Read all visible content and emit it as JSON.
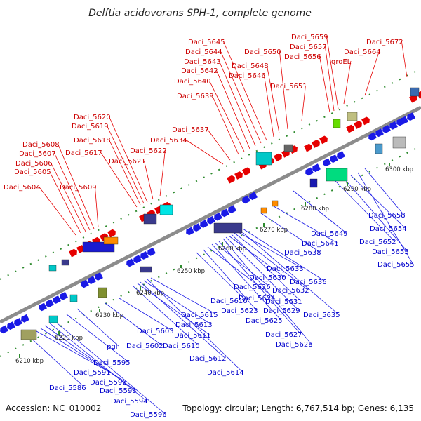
{
  "title": "Delftia acidovorans SPH-1, complete genome",
  "accession": "Accession: NC_010002",
  "topology": "Topology: circular; Length: 6,767,514 bp; Genes: 6,135",
  "colors": {
    "forward_gene": "#e60000",
    "reverse_gene": "#1a1ae6",
    "forward_label": "#cc0000",
    "reverse_label": "#0000cc",
    "axis": "#9a9a9a",
    "tick": "#2e8b2e"
  },
  "kbp_ticks": [
    "6210 kbp",
    "6220 kbp",
    "6230 kbp",
    "6240 kbp",
    "6250 kbp",
    "6260 kbp",
    "6270 kbp",
    "6280 kbp",
    "6290 kbp",
    "6300 kbp"
  ],
  "forward_genes": [
    "Daci_5604",
    "Daci_5605",
    "Daci_5606",
    "Daci_5607",
    "Daci_5608",
    "Daci_5609",
    "Daci_5617",
    "Daci_5618",
    "Daci_5619",
    "Daci_5620",
    "Daci_5621",
    "Daci_5622",
    "Daci_5634",
    "Daci_5637",
    "Daci_5639",
    "Daci_5640",
    "Daci_5642",
    "Daci_5643",
    "Daci_5644",
    "Daci_5645",
    "Daci_5646",
    "Daci_5648",
    "Daci_5650",
    "Daci_5651",
    "Daci_5656",
    "Daci_5657",
    "Daci_5659",
    "groEL",
    "Daci_5664",
    "Daci_5672"
  ],
  "reverse_genes": [
    "Daci_5586",
    "Daci_5591",
    "Daci_5592",
    "Daci_5593",
    "Daci_5594",
    "Daci_5595",
    "Daci_5596",
    "pgi",
    "Daci_5602",
    "Daci_5603",
    "Daci_5610",
    "Daci_5611",
    "Daci_5612",
    "Daci_5613",
    "Daci_5614",
    "Daci_5615",
    "Daci_5616",
    "Daci_5623",
    "Daci_5624",
    "Daci_5625",
    "Daci_5626",
    "Daci_5627",
    "Daci_5628",
    "Daci_5629",
    "Daci_5630",
    "Daci_5631",
    "Daci_5632",
    "Daci_5633",
    "Daci_5635",
    "Daci_5636",
    "Daci_5638",
    "Daci_5641",
    "Daci_5649",
    "Daci_5652",
    "Daci_5653",
    "Daci_5654",
    "Daci_5655",
    "Daci_5658"
  ]
}
